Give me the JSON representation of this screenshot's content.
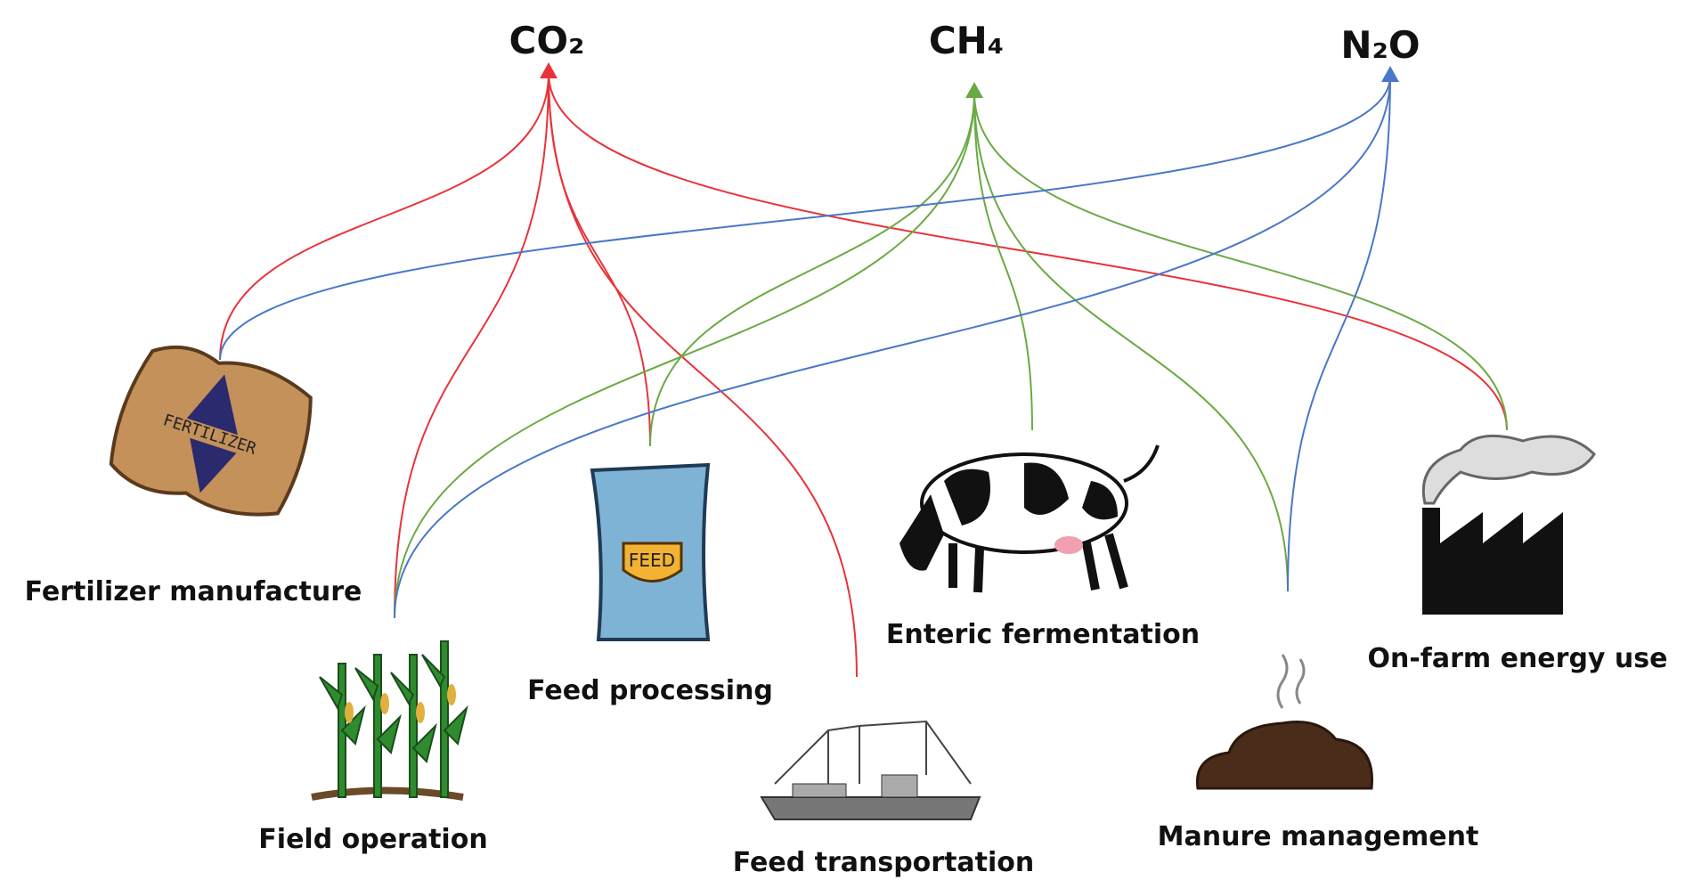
{
  "gases": [
    {
      "label": "CO₂"
    },
    {
      "label": "CH₄"
    },
    {
      "label": "N₂O"
    }
  ],
  "sources": [
    {
      "label": "Fertilizer manufacture"
    },
    {
      "label": "Field operation"
    },
    {
      "label": "Feed processing"
    },
    {
      "label": "Feed transportation"
    },
    {
      "label": "Enteric fermentation"
    },
    {
      "label": "Manure management"
    },
    {
      "label": "On-farm energy use"
    }
  ]
}
